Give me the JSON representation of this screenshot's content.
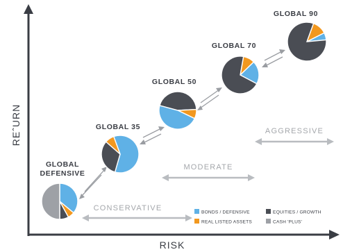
{
  "axes": {
    "x_label": "RISK",
    "y_label": "REˆURN"
  },
  "portfolios": [
    {
      "id": "defensive",
      "title_lines": [
        "GLOBAL",
        "DEFENSIVE"
      ],
      "slices": [
        {
          "category": "bonds",
          "fraction": 0.36
        },
        {
          "category": "real",
          "fraction": 0.06
        },
        {
          "category": "equity",
          "fraction": 0.08
        },
        {
          "category": "cash",
          "fraction": 0.5
        }
      ]
    },
    {
      "id": "g35",
      "title_lines": [
        "GLOBAL 35"
      ],
      "slices": [
        {
          "category": "bonds",
          "fraction": 0.6
        },
        {
          "category": "equity",
          "fraction": 0.32
        },
        {
          "category": "real",
          "fraction": 0.08
        }
      ]
    },
    {
      "id": "g50",
      "title_lines": [
        "GLOBAL 50"
      ],
      "slices": [
        {
          "category": "equity",
          "fraction": 0.45
        },
        {
          "category": "real",
          "fraction": 0.08
        },
        {
          "category": "bonds",
          "fraction": 0.47
        }
      ]
    },
    {
      "id": "g70",
      "title_lines": [
        "GLOBAL 70"
      ],
      "slices": [
        {
          "category": "real",
          "fraction": 0.1
        },
        {
          "category": "bonds",
          "fraction": 0.2
        },
        {
          "category": "equity",
          "fraction": 0.7
        }
      ]
    },
    {
      "id": "g90",
      "title_lines": [
        "GLOBAL 90"
      ],
      "slices": [
        {
          "category": "real",
          "fraction": 0.12
        },
        {
          "category": "bonds",
          "fraction": 0.06
        },
        {
          "category": "equity",
          "fraction": 0.82
        }
      ]
    }
  ],
  "zones": [
    {
      "id": "conservative",
      "label": "CONSERVATIVE"
    },
    {
      "id": "moderate",
      "label": "MODERATE"
    },
    {
      "id": "aggressive",
      "label": "AGGRESSIVE"
    }
  ],
  "legend": [
    {
      "category": "bonds",
      "label": "BONDS / DEFENSIVE"
    },
    {
      "category": "equity",
      "label": "EQUITIES / GROWTH"
    },
    {
      "category": "real",
      "label": "REAL LISTED ASSETS"
    },
    {
      "category": "cash",
      "label": "CASH 'PLUS'"
    }
  ],
  "colors": {
    "bonds": "#5fb1e6",
    "equity": "#4a4d54",
    "real": "#f2981f",
    "cash": "#9ea1a6",
    "axis": "#3a3d44",
    "arrow": "#9a9da2",
    "zone_line": "#b9bcc0"
  }
}
